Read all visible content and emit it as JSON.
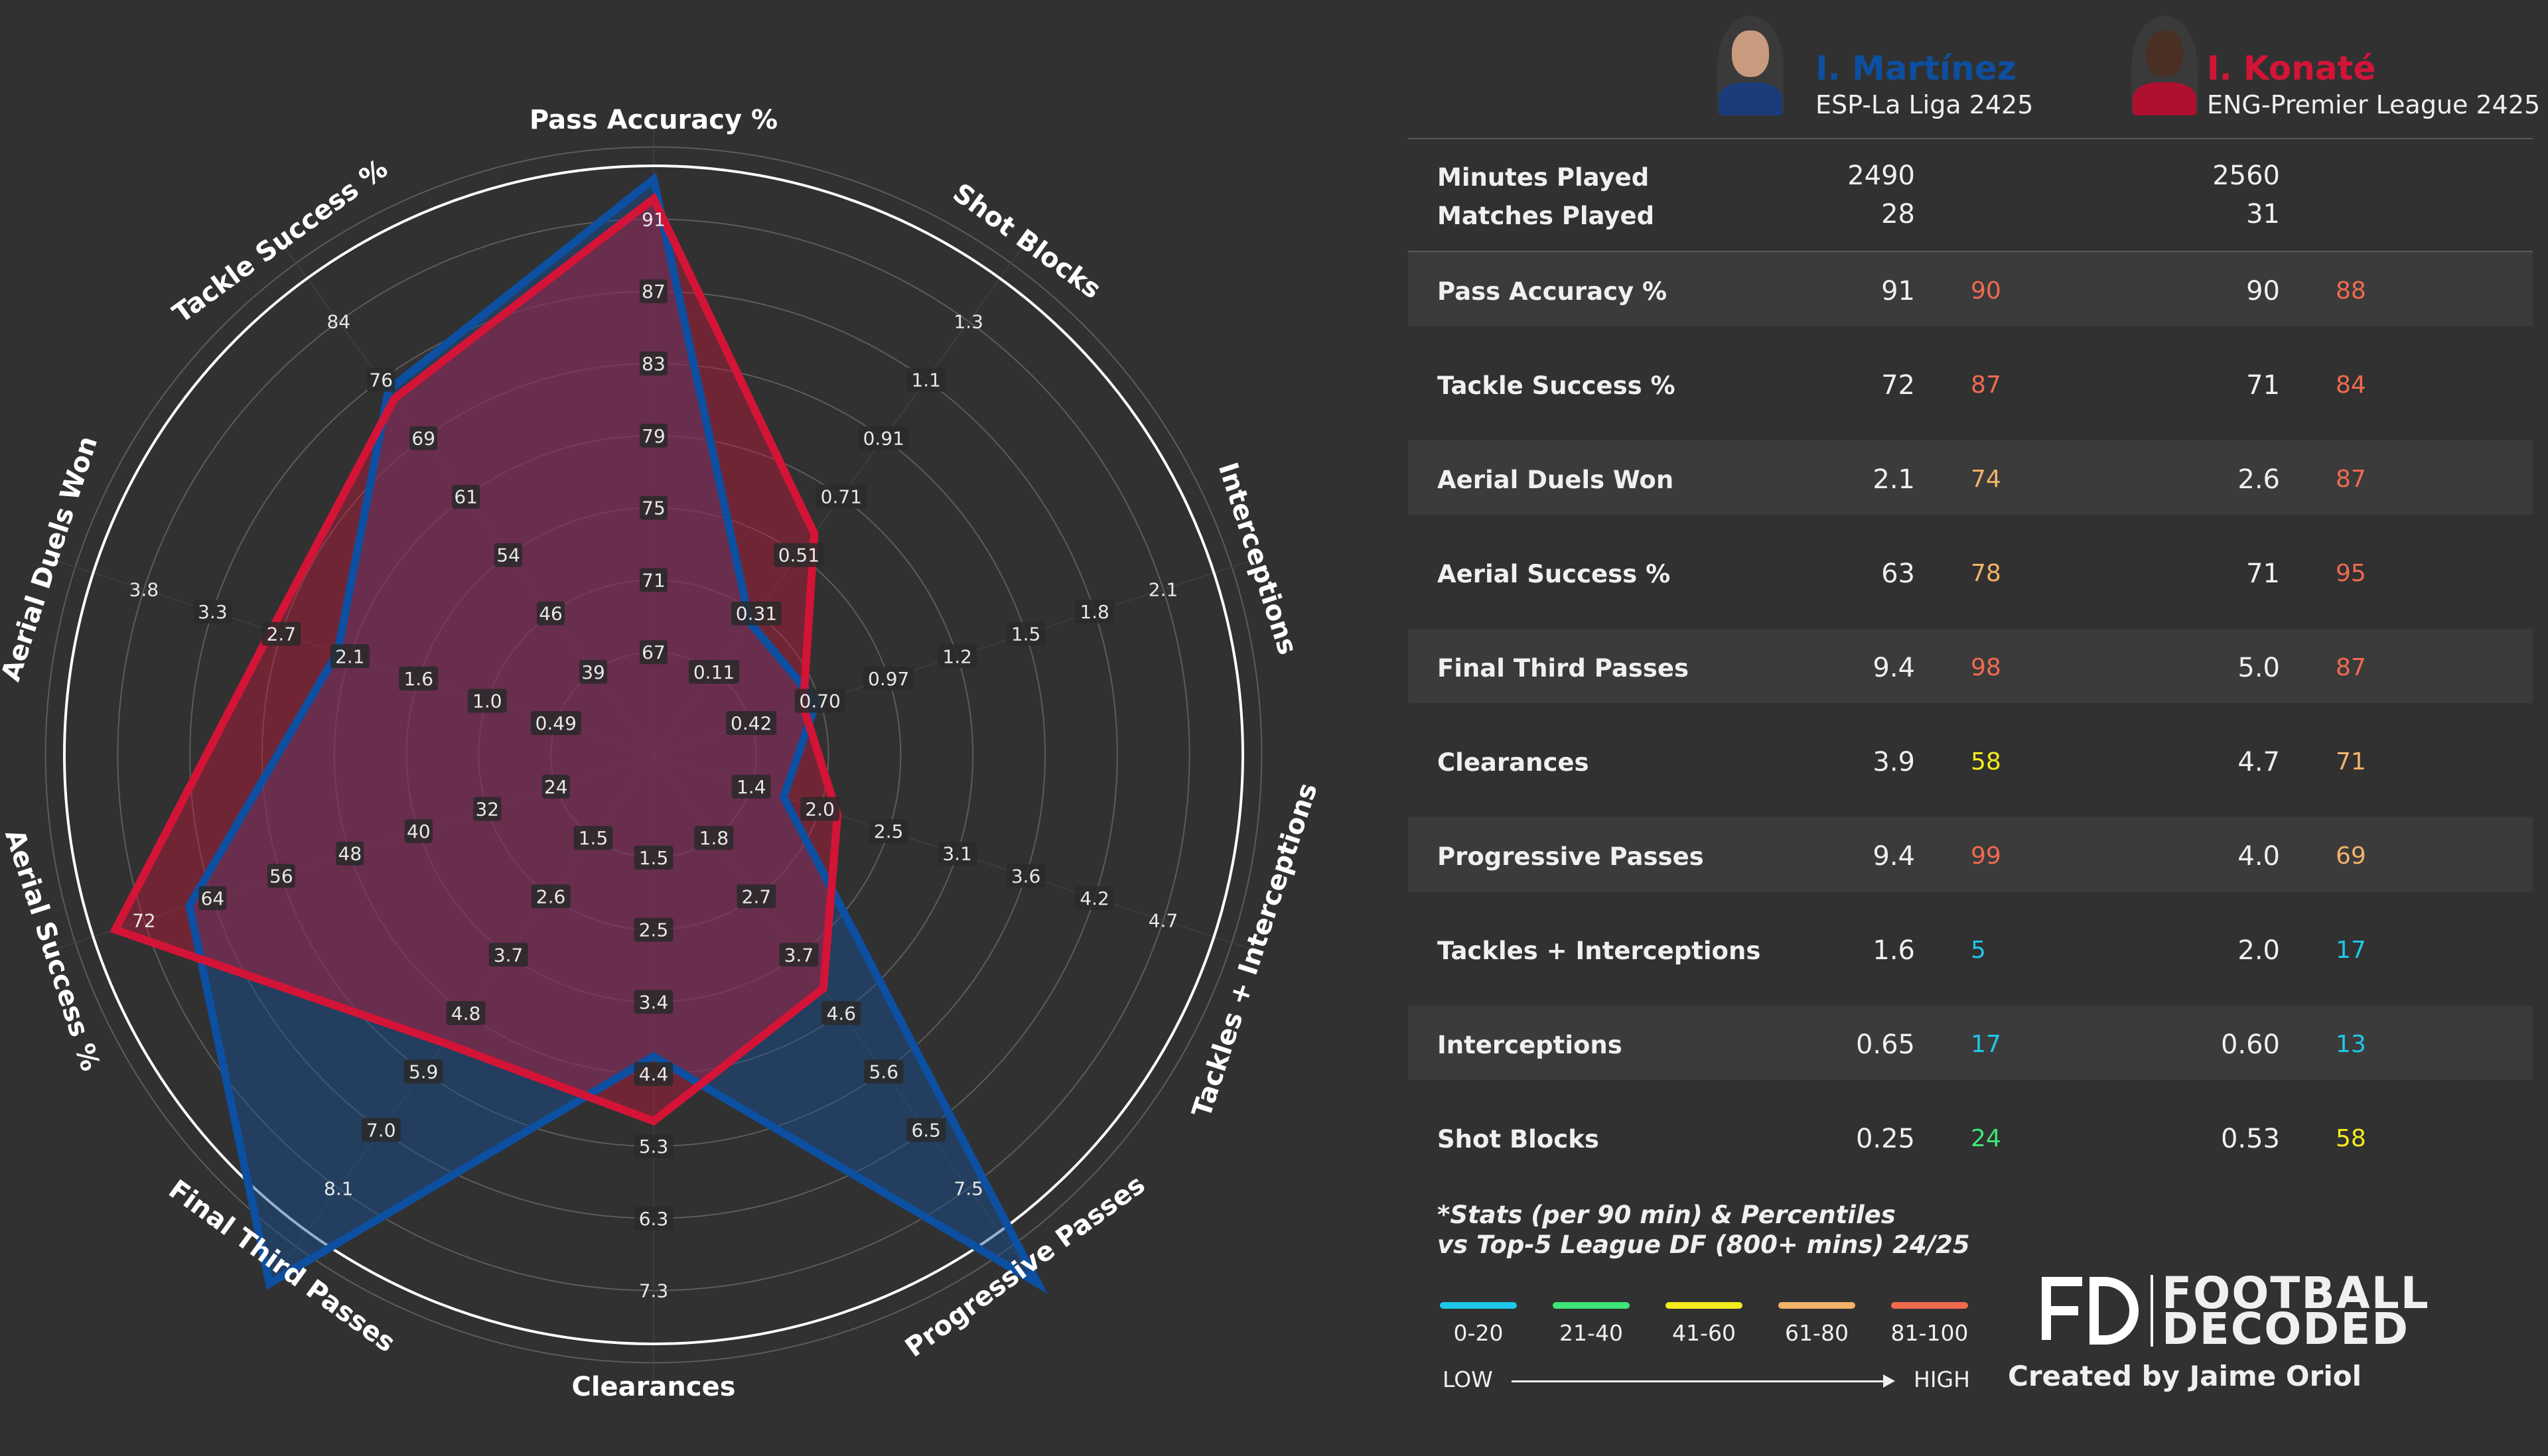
{
  "players": [
    {
      "name": "I. Martínez",
      "league": "ESP-La Liga 2425",
      "color": "#0d4fa0",
      "minutes": "2490",
      "matches": "28"
    },
    {
      "name": "I. Konaté",
      "league": "ENG-Premier League 2425",
      "color": "#d31437",
      "minutes": "2560",
      "matches": "31"
    }
  ],
  "summary_labels": {
    "minutes": "Minutes Played",
    "matches": "Matches Played"
  },
  "stats": [
    {
      "label": "Pass Accuracy %",
      "p1_value": "91",
      "p1_pct": "90",
      "p2_value": "90",
      "p2_pct": "88"
    },
    {
      "label": "Tackle Success %",
      "p1_value": "72",
      "p1_pct": "87",
      "p2_value": "71",
      "p2_pct": "84"
    },
    {
      "label": "Aerial Duels Won",
      "p1_value": "2.1",
      "p1_pct": "74",
      "p2_value": "2.6",
      "p2_pct": "87"
    },
    {
      "label": "Aerial Success %",
      "p1_value": "63",
      "p1_pct": "78",
      "p2_value": "71",
      "p2_pct": "95"
    },
    {
      "label": "Final Third Passes",
      "p1_value": "9.4",
      "p1_pct": "98",
      "p2_value": "5.0",
      "p2_pct": "87"
    },
    {
      "label": "Clearances",
      "p1_value": "3.9",
      "p1_pct": "58",
      "p2_value": "4.7",
      "p2_pct": "71"
    },
    {
      "label": "Progressive Passes",
      "p1_value": "9.4",
      "p1_pct": "99",
      "p2_value": "4.0",
      "p2_pct": "69"
    },
    {
      "label": "Tackles + Interceptions",
      "p1_value": "1.6",
      "p1_pct": "5",
      "p2_value": "2.0",
      "p2_pct": "17"
    },
    {
      "label": "Interceptions",
      "p1_value": "0.65",
      "p1_pct": "17",
      "p2_value": "0.60",
      "p2_pct": "13"
    },
    {
      "label": "Shot Blocks",
      "p1_value": "0.25",
      "p1_pct": "24",
      "p2_value": "0.53",
      "p2_pct": "58"
    }
  ],
  "footnote": {
    "line1": "*Stats (per 90 min) & Percentiles",
    "line2": "vs Top-5 League DF (800+ mins) 24/25"
  },
  "percentile_legend": [
    {
      "range": "0-20",
      "color": "#1ec8e8"
    },
    {
      "range": "21-40",
      "color": "#3ee67a"
    },
    {
      "range": "41-60",
      "color": "#f4ec1c"
    },
    {
      "range": "61-80",
      "color": "#f3b36a"
    },
    {
      "range": "81-100",
      "color": "#f16a50"
    }
  ],
  "scale_labels": {
    "low": "LOW",
    "high": "HIGH"
  },
  "branding": {
    "mark": "FD",
    "line1": "FOOTBALL",
    "line2": "DECODED",
    "credit": "Created by Jaime Oriol"
  },
  "chart_data": {
    "type": "radar",
    "axes": [
      {
        "label": "Pass Accuracy %",
        "ticks": [
          "67",
          "71",
          "75",
          "79",
          "83",
          "87",
          "91"
        ],
        "min": 63,
        "max": 95
      },
      {
        "label": "Shot Blocks",
        "ticks": [
          "0.11",
          "0.31",
          "0.51",
          "0.71",
          "0.91",
          "1.1",
          "1.3"
        ],
        "min": -0.09,
        "max": 1.5
      },
      {
        "label": "Interceptions",
        "ticks": [
          "0.42",
          "0.70",
          "0.97",
          "1.2",
          "1.5",
          "1.8",
          "2.1"
        ],
        "min": 0.14,
        "max": 2.4
      },
      {
        "label": "Tackles + Interceptions",
        "ticks": [
          "1.4",
          "2.0",
          "2.5",
          "3.1",
          "3.6",
          "4.2",
          "4.7"
        ],
        "min": 0.85,
        "max": 5.25
      },
      {
        "label": "Progressive Passes",
        "ticks": [
          "1.8",
          "2.7",
          "3.7",
          "4.6",
          "5.6",
          "6.5",
          "7.5"
        ],
        "min": 0.85,
        "max": 8.45
      },
      {
        "label": "Clearances",
        "ticks": [
          "1.5",
          "2.5",
          "3.4",
          "4.4",
          "5.3",
          "6.3",
          "7.3"
        ],
        "min": 0.55,
        "max": 8.25
      },
      {
        "label": "Final Third Passes",
        "ticks": [
          "1.5",
          "2.6",
          "3.7",
          "4.8",
          "5.9",
          "7.0",
          "8.1"
        ],
        "min": 0.4,
        "max": 9.2
      },
      {
        "label": "Aerial Success %",
        "ticks": [
          "24",
          "32",
          "40",
          "48",
          "56",
          "64",
          "72"
        ],
        "min": 16,
        "max": 80
      },
      {
        "label": "Aerial Duels Won",
        "ticks": [
          "0.49",
          "1.0",
          "1.6",
          "2.1",
          "2.7",
          "3.3",
          "3.8"
        ],
        "min": -0.06,
        "max": 4.4
      },
      {
        "label": "Tackle Success %",
        "ticks": [
          "39",
          "46",
          "54",
          "61",
          "69",
          "76",
          "84"
        ],
        "min": 31.5,
        "max": 91.5
      }
    ],
    "series": [
      {
        "name": "I. Martínez",
        "color": "#0d4fa0",
        "values": [
          91,
          0.25,
          0.65,
          1.6,
          9.4,
          3.9,
          9.4,
          63,
          2.1,
          72
        ]
      },
      {
        "name": "I. Konaté",
        "color": "#d31437",
        "values": [
          90,
          0.53,
          0.6,
          2.0,
          4.0,
          4.7,
          5.0,
          71,
          2.6,
          71
        ]
      }
    ]
  }
}
